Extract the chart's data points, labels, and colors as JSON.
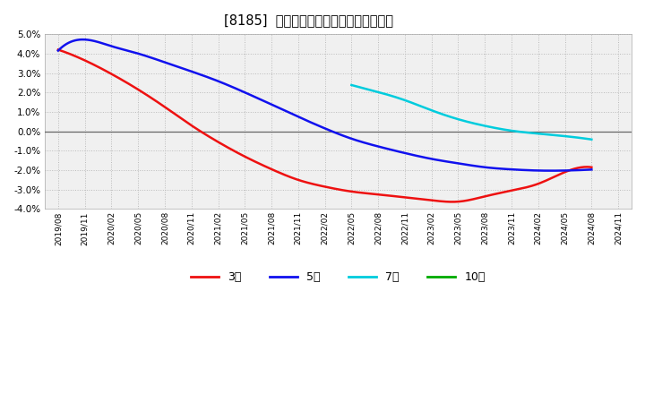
{
  "title": "[8185]  経常利益マージンの平均値の推移",
  "background_color": "#ffffff",
  "plot_bg_color": "#f0f0f0",
  "grid_color": "#bbbbbb",
  "ylim": [
    -4.0,
    5.0
  ],
  "yticks": [
    -4.0,
    -3.0,
    -2.0,
    -1.0,
    0.0,
    1.0,
    2.0,
    3.0,
    4.0,
    5.0
  ],
  "x_labels": [
    "2019/08",
    "2019/11",
    "2020/02",
    "2020/05",
    "2020/08",
    "2020/11",
    "2021/02",
    "2021/05",
    "2021/08",
    "2021/11",
    "2022/02",
    "2022/05",
    "2022/08",
    "2022/11",
    "2023/02",
    "2023/05",
    "2023/08",
    "2023/11",
    "2024/02",
    "2024/05",
    "2024/08",
    "2024/11"
  ],
  "series": {
    "3year": {
      "color": "#ee1111",
      "label": "3年",
      "values": [
        4.2,
        3.65,
        2.95,
        2.15,
        1.25,
        0.3,
        -0.55,
        -1.3,
        -1.95,
        -2.5,
        -2.85,
        -3.1,
        -3.25,
        -3.4,
        -3.55,
        -3.62,
        -3.35,
        -3.05,
        -2.7,
        -2.1,
        -1.85,
        null
      ]
    },
    "5year": {
      "color": "#1111ee",
      "label": "5年",
      "values": [
        4.15,
        4.72,
        4.38,
        4.0,
        3.55,
        3.08,
        2.58,
        2.0,
        1.38,
        0.75,
        0.15,
        -0.38,
        -0.78,
        -1.12,
        -1.42,
        -1.65,
        -1.85,
        -1.96,
        -2.02,
        -2.02,
        -1.97,
        null
      ]
    },
    "7year": {
      "color": "#00ccdd",
      "label": "7年",
      "values": [
        null,
        null,
        null,
        null,
        null,
        null,
        null,
        null,
        null,
        null,
        null,
        2.38,
        2.02,
        1.6,
        1.08,
        0.62,
        0.28,
        0.03,
        -0.12,
        -0.25,
        -0.42,
        null
      ]
    },
    "10year": {
      "color": "#00aa00",
      "label": "10年",
      "values": [
        null,
        null,
        null,
        null,
        null,
        null,
        null,
        null,
        null,
        null,
        null,
        null,
        null,
        null,
        null,
        null,
        null,
        null,
        null,
        null,
        null,
        null
      ]
    }
  },
  "legend_items": [
    {
      "label": "3年",
      "color": "#ee1111"
    },
    {
      "label": "5年",
      "color": "#1111ee"
    },
    {
      "label": "7年",
      "color": "#00ccdd"
    },
    {
      "label": "10年",
      "color": "#00aa00"
    }
  ]
}
